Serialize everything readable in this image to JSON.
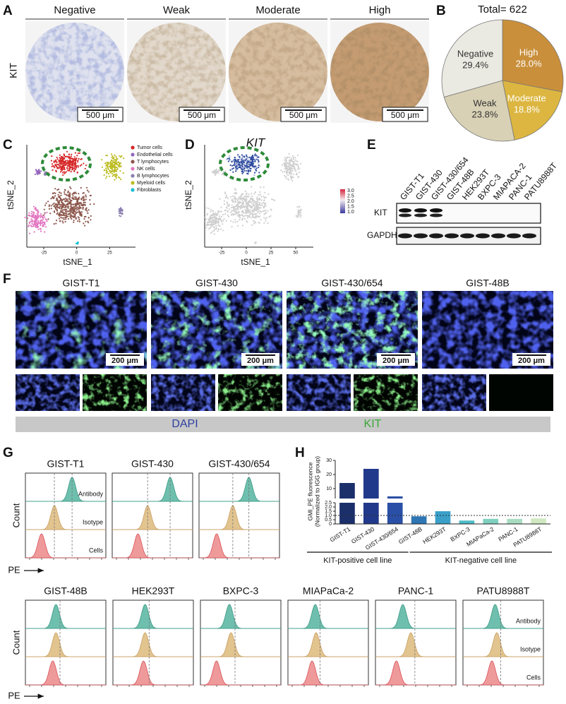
{
  "panel_labels": [
    "A",
    "B",
    "C",
    "D",
    "E",
    "F",
    "G",
    "H"
  ],
  "A": {
    "row_label": "KIT",
    "columns": [
      "Negative",
      "Weak",
      "Moderate",
      "High"
    ],
    "scale_bar": "500 μm"
  },
  "C": {
    "y_label": "tSNE_2",
    "x_label": "tSNE_1",
    "xticks": [
      "-25",
      "0",
      "25"
    ],
    "legend": [
      {
        "name": "Tumor cells",
        "color": "#d62728"
      },
      {
        "name": "Endothelial cells",
        "color": "#9467bd"
      },
      {
        "name": "T lymphocytes",
        "color": "#8c564b"
      },
      {
        "name": "NK cells",
        "color": "#e377c2"
      },
      {
        "name": "B lymphocytes",
        "color": "#8a7fb0"
      },
      {
        "name": "Myeloid cells",
        "color": "#bcbd22"
      },
      {
        "name": "Fibroblasts",
        "color": "#17becf"
      }
    ]
  },
  "D": {
    "title": "KIT",
    "y_label": "tSNE_2",
    "x_label": "tSNE_1",
    "xticks": [
      "-25",
      "0",
      "25",
      "50"
    ],
    "colorbar_ticks": [
      "3.0",
      "2.5",
      "2.0",
      "1.5",
      "1.0"
    ]
  },
  "E": {
    "lanes": [
      "GIST-T1",
      "GIST-430",
      "GIST-430/654",
      "GIST-48B",
      "HEK293T",
      "BXPC-3",
      "MIAPACA-2",
      "PANC-1",
      "PATU8988T"
    ],
    "rows": [
      "KIT",
      "GAPDH"
    ]
  },
  "F": {
    "columns": [
      "GIST-T1",
      "GIST-430",
      "GIST-430/654",
      "GIST-48B"
    ],
    "scale_bar": "200 μm",
    "channels": [
      "DAPI",
      "KIT"
    ]
  },
  "G": {
    "top_row": [
      "GIST-T1",
      "GIST-430",
      "GIST-430/654"
    ],
    "bottom_row": [
      "GIST-48B",
      "HEK293T",
      "BXPC-3",
      "MIAPaCa-2",
      "PANC-1",
      "PATU8988T"
    ],
    "tracks": [
      "Antibody",
      "Isotype",
      "Cells"
    ],
    "y_label": "Count",
    "x_label": "PE"
  },
  "chart_data": [
    {
      "type": "pie",
      "title": "Total= 622",
      "categories": [
        "High",
        "Moderate",
        "Weak",
        "Negative"
      ],
      "values": [
        28.0,
        18.8,
        23.8,
        29.4
      ],
      "value_labels": [
        "28.0%",
        "18.8%",
        "23.8%",
        "29.4%"
      ],
      "colors": [
        "#c98f3b",
        "#dcb640",
        "#d8d1b5",
        "#ebeae2"
      ]
    },
    {
      "type": "bar",
      "y_label": [
        "GMI_PE fluorescence",
        "(Normalized to IGG group)"
      ],
      "categories": [
        "GIST-T1",
        "GIST-430",
        "GIST-430/654",
        "GIST-48B",
        "HEK293T",
        "BXPC-3",
        "MIAPaCa-2",
        "PANC-1",
        "PATU8988T"
      ],
      "values": [
        14,
        24,
        4.5,
        0.9,
        1.5,
        0.4,
        0.6,
        0.6,
        0.65
      ],
      "colors": [
        "#1b2f6b",
        "#20398a",
        "#2a4fa6",
        "#2f76b5",
        "#3aa0c9",
        "#4fbcc7",
        "#7fd0c0",
        "#a8dcc0",
        "#cfe8c0"
      ],
      "ylim": [
        0,
        30
      ],
      "axis_break": [
        2.5,
        3
      ],
      "yticks": [
        0,
        0.5,
        {
          "value": 1,
          "label": "1.0"
        },
        1.5,
        {
          "value": 2,
          "label": "2.0"
        },
        2.5,
        10,
        20,
        30
      ],
      "reference_line": 1,
      "groups": [
        {
          "label": "KIT-positive cell line",
          "categories": [
            "GIST-T1",
            "GIST-430",
            "GIST-430/654"
          ]
        },
        {
          "label": "KIT-negative cell line",
          "categories": [
            "GIST-48B",
            "HEK293T",
            "BXPC-3",
            "MIAPaCa-2",
            "PANC-1",
            "PATU8988T"
          ]
        }
      ]
    }
  ]
}
